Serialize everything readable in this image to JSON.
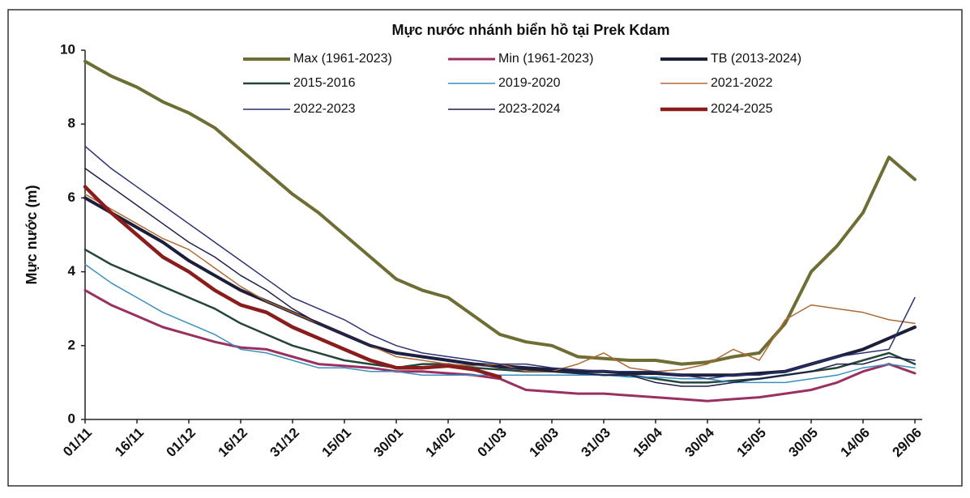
{
  "chart_data": {
    "type": "line",
    "title": "Mực nước nhánh biển hồ tại Prek Kdam",
    "y_label": "Mực nước (m)",
    "categories": [
      "01/11",
      null,
      "16/11",
      null,
      "01/12",
      null,
      "16/12",
      null,
      "31/12",
      null,
      "15/01",
      null,
      "30/01",
      null,
      "14/02",
      null,
      "01/03",
      null,
      "16/03",
      null,
      "31/03",
      null,
      "15/04",
      null,
      "30/04",
      null,
      "15/05",
      null,
      "30/05",
      null,
      "14/06",
      null,
      "29/06"
    ],
    "ylim": [
      0,
      10
    ],
    "yticks": [
      0,
      2,
      4,
      6,
      8,
      10
    ],
    "grid": false,
    "series": [
      {
        "name": "Max (1961-2023)",
        "color": "#6e6e34",
        "width": 4,
        "values": [
          9.7,
          9.3,
          9.0,
          8.6,
          8.3,
          7.9,
          7.3,
          6.7,
          6.1,
          5.6,
          5.0,
          4.4,
          3.8,
          3.5,
          3.3,
          2.8,
          2.3,
          2.1,
          2.0,
          1.7,
          1.65,
          1.6,
          1.6,
          1.5,
          1.55,
          1.7,
          1.8,
          2.6,
          4.0,
          4.7,
          5.6,
          7.1,
          6.5
        ]
      },
      {
        "name": "Min (1961-2023)",
        "color": "#9a3060",
        "width": 3,
        "values": [
          3.5,
          3.1,
          2.8,
          2.5,
          2.3,
          2.1,
          1.95,
          1.9,
          1.7,
          1.5,
          1.45,
          1.4,
          1.3,
          1.3,
          1.25,
          1.2,
          1.1,
          0.8,
          0.75,
          0.7,
          0.7,
          0.65,
          0.6,
          0.55,
          0.5,
          0.55,
          0.6,
          0.7,
          0.8,
          1.0,
          1.3,
          1.5,
          1.25
        ]
      },
      {
        "name": "TB (2013-2024)",
        "color": "#1c1f3a",
        "width": 4,
        "values": [
          6.0,
          5.6,
          5.2,
          4.8,
          4.3,
          3.9,
          3.5,
          3.2,
          2.9,
          2.6,
          2.3,
          2.0,
          1.8,
          1.7,
          1.6,
          1.5,
          1.45,
          1.4,
          1.35,
          1.3,
          1.3,
          1.25,
          1.25,
          1.2,
          1.2,
          1.2,
          1.25,
          1.3,
          1.5,
          1.7,
          1.9,
          2.2,
          2.5
        ]
      },
      {
        "name": "2015-2016",
        "color": "#24463a",
        "width": 2.5,
        "values": [
          4.6,
          4.2,
          3.9,
          3.6,
          3.3,
          3.0,
          2.6,
          2.3,
          2.0,
          1.8,
          1.6,
          1.5,
          1.4,
          1.5,
          1.5,
          1.4,
          1.35,
          1.3,
          1.3,
          1.25,
          1.2,
          1.2,
          1.1,
          1.0,
          1.0,
          1.05,
          1.1,
          1.2,
          1.3,
          1.4,
          1.6,
          1.8,
          1.5
        ]
      },
      {
        "name": "2019-2020",
        "color": "#3a8fc0",
        "width": 1.5,
        "values": [
          4.2,
          3.7,
          3.3,
          2.9,
          2.6,
          2.3,
          1.9,
          1.8,
          1.6,
          1.4,
          1.4,
          1.3,
          1.3,
          1.2,
          1.2,
          1.2,
          1.2,
          1.2,
          1.2,
          1.2,
          1.2,
          1.15,
          1.15,
          1.1,
          1.1,
          1.0,
          1.0,
          1.0,
          1.1,
          1.2,
          1.4,
          1.5,
          1.4
        ]
      },
      {
        "name": "2021-2022",
        "color": "#b06a34",
        "width": 1.5,
        "values": [
          6.1,
          5.7,
          5.3,
          4.9,
          4.6,
          4.1,
          3.6,
          3.2,
          2.9,
          2.6,
          2.3,
          2.0,
          1.7,
          1.6,
          1.5,
          1.45,
          1.5,
          1.3,
          1.3,
          1.5,
          1.8,
          1.4,
          1.3,
          1.35,
          1.5,
          1.9,
          1.6,
          2.7,
          3.1,
          3.0,
          2.9,
          2.7,
          2.6
        ]
      },
      {
        "name": "2022-2023",
        "color": "#2b3172",
        "width": 1.5,
        "values": [
          7.4,
          6.8,
          6.3,
          5.8,
          5.3,
          4.8,
          4.3,
          3.8,
          3.3,
          3.0,
          2.7,
          2.3,
          2.0,
          1.8,
          1.7,
          1.6,
          1.5,
          1.5,
          1.4,
          1.35,
          1.3,
          1.3,
          1.3,
          1.2,
          1.1,
          1.2,
          1.2,
          1.3,
          1.5,
          1.7,
          1.8,
          1.9,
          3.3
        ]
      },
      {
        "name": "2023-2024",
        "color": "#1e1e4c",
        "width": 1.5,
        "values": [
          6.8,
          6.3,
          5.8,
          5.3,
          4.8,
          4.4,
          3.9,
          3.5,
          3.0,
          2.6,
          2.3,
          2.0,
          1.8,
          1.7,
          1.6,
          1.5,
          1.4,
          1.35,
          1.3,
          1.25,
          1.2,
          1.2,
          1.0,
          0.9,
          0.9,
          1.0,
          1.1,
          1.2,
          1.3,
          1.5,
          1.5,
          1.7,
          1.6
        ]
      },
      {
        "name": "2024-2025",
        "color": "#8a1c1c",
        "width": 4.5,
        "values": [
          6.3,
          5.6,
          5.0,
          4.4,
          4.0,
          3.5,
          3.1,
          2.9,
          2.5,
          2.2,
          1.9,
          1.6,
          1.4,
          1.4,
          1.45,
          1.35,
          1.15,
          null,
          null,
          null,
          null,
          null,
          null,
          null,
          null,
          null,
          null,
          null,
          null,
          null,
          null,
          null,
          null
        ]
      }
    ]
  }
}
